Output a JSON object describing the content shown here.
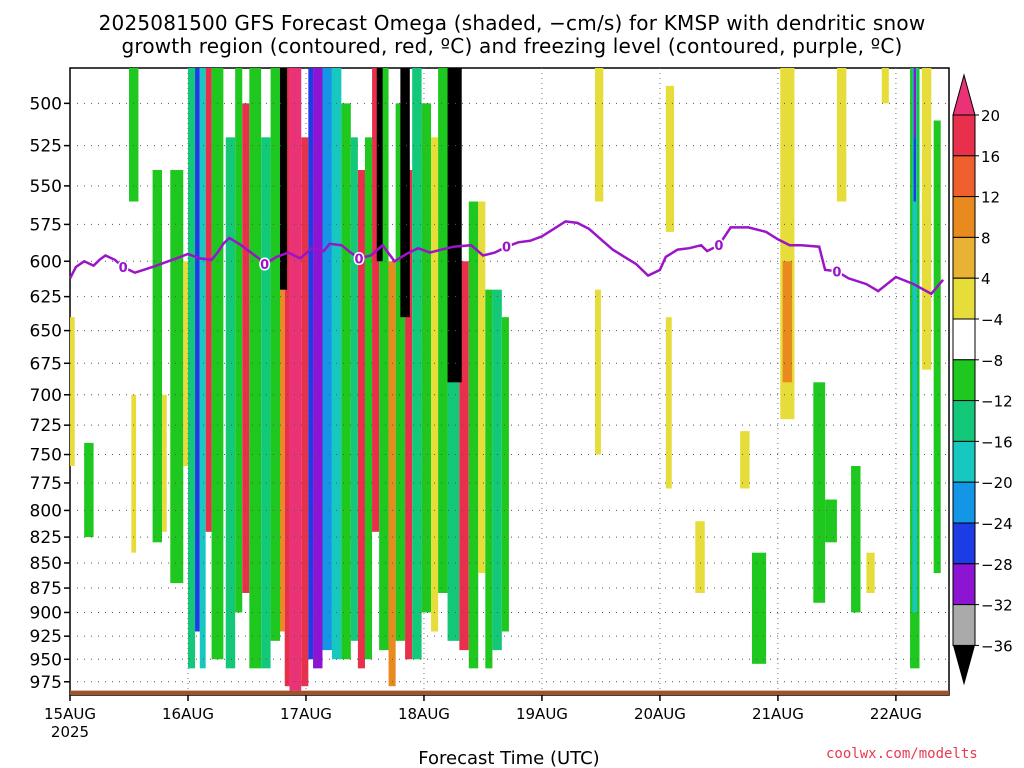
{
  "title_line1": "2025081500 GFS Forecast Omega (shaded, −cm/s) for KMSP with dendritic snow",
  "title_line2": "growth region (contoured, red, ºC) and freezing level (contoured, purple, ºC)",
  "xlabel": "Forecast Time (UTC)",
  "credit": "coolwx.com/modelts",
  "chart_data": {
    "type": "heatmap",
    "title": "2025081500 GFS Forecast Omega (shaded, −cm/s) for KMSP with dendritic snow growth region (contoured, red, ºC) and freezing level (contoured, purple, ºC)",
    "xlabel": "Forecast Time (UTC)",
    "ylabel": "",
    "x_ticks": [
      "15AUG",
      "16AUG",
      "17AUG",
      "18AUG",
      "19AUG",
      "20AUG",
      "21AUG",
      "22AUG"
    ],
    "x_tick_sub": "2025",
    "y_ticks": [
      500,
      525,
      550,
      575,
      600,
      625,
      650,
      675,
      700,
      725,
      750,
      775,
      800,
      825,
      850,
      875,
      900,
      925,
      950,
      975
    ],
    "y_scale": "log",
    "ylim": [
      480,
      990
    ],
    "xlim_days": [
      0,
      7.45
    ],
    "grid": true,
    "colorbar": {
      "labels": [
        "20",
        "16",
        "12",
        "8",
        "4",
        "−4",
        "−8",
        "−12",
        "−16",
        "−20",
        "−24",
        "−28",
        "−32",
        "−36"
      ],
      "colors": [
        "#e8304d",
        "#f0602e",
        "#e88a1e",
        "#e8b234",
        "#e6dd3a",
        "#ffffff",
        "#1ec81e",
        "#14c87a",
        "#16c8c0",
        "#1496e6",
        "#1c3ce6",
        "#8c14d2",
        "#aaaaaa"
      ],
      "top_arrow_color": "#ea3276",
      "bottom_arrow_color": "#000000"
    },
    "freezing_level_label": "0",
    "freezing_level_hpa": [
      [
        0.0,
        612
      ],
      [
        0.05,
        604
      ],
      [
        0.12,
        600
      ],
      [
        0.2,
        603
      ],
      [
        0.25,
        599
      ],
      [
        0.3,
        596
      ],
      [
        0.38,
        599
      ],
      [
        0.45,
        604
      ],
      [
        0.55,
        608
      ],
      [
        0.7,
        604
      ],
      [
        0.8,
        601
      ],
      [
        0.9,
        598
      ],
      [
        1.0,
        595
      ],
      [
        1.1,
        598
      ],
      [
        1.2,
        599
      ],
      [
        1.25,
        594
      ],
      [
        1.3,
        588
      ],
      [
        1.35,
        584
      ],
      [
        1.45,
        589
      ],
      [
        1.5,
        592
      ],
      [
        1.6,
        598
      ],
      [
        1.65,
        602
      ],
      [
        1.75,
        597
      ],
      [
        1.85,
        594
      ],
      [
        1.95,
        598
      ],
      [
        2.05,
        591
      ],
      [
        2.15,
        593
      ],
      [
        2.2,
        588
      ],
      [
        2.3,
        589
      ],
      [
        2.38,
        594
      ],
      [
        2.45,
        598
      ],
      [
        2.55,
        596
      ],
      [
        2.65,
        589
      ],
      [
        2.75,
        600
      ],
      [
        2.85,
        595
      ],
      [
        2.95,
        591
      ],
      [
        3.05,
        594
      ],
      [
        3.15,
        592
      ],
      [
        3.25,
        590
      ],
      [
        3.4,
        589
      ],
      [
        3.5,
        596
      ],
      [
        3.6,
        594
      ],
      [
        3.7,
        590
      ],
      [
        3.8,
        587
      ],
      [
        3.9,
        586
      ],
      [
        4.0,
        583
      ],
      [
        4.1,
        578
      ],
      [
        4.2,
        573
      ],
      [
        4.3,
        574
      ],
      [
        4.4,
        578
      ],
      [
        4.5,
        585
      ],
      [
        4.6,
        592
      ],
      [
        4.7,
        597
      ],
      [
        4.8,
        602
      ],
      [
        4.9,
        610
      ],
      [
        5.0,
        606
      ],
      [
        5.05,
        597
      ],
      [
        5.15,
        592
      ],
      [
        5.25,
        591
      ],
      [
        5.35,
        589
      ],
      [
        5.4,
        593
      ],
      [
        5.5,
        589
      ],
      [
        5.6,
        577
      ],
      [
        5.75,
        577
      ],
      [
        5.9,
        580
      ],
      [
        6.0,
        585
      ],
      [
        6.1,
        589
      ],
      [
        6.2,
        589
      ],
      [
        6.35,
        590
      ],
      [
        6.4,
        606
      ],
      [
        6.5,
        607
      ],
      [
        6.6,
        612
      ],
      [
        6.75,
        616
      ],
      [
        6.85,
        621
      ],
      [
        7.0,
        611
      ],
      [
        7.15,
        616
      ],
      [
        7.3,
        623
      ],
      [
        7.4,
        613
      ]
    ],
    "omega_bands": [
      {
        "x0": 0.0,
        "x1": 0.04,
        "p0": 640,
        "p1": 760,
        "color": "#e6dd3a"
      },
      {
        "x0": 0.12,
        "x1": 0.2,
        "p0": 740,
        "p1": 825,
        "color": "#1ec81e"
      },
      {
        "x0": 0.5,
        "x1": 0.58,
        "p0": 480,
        "p1": 560,
        "color": "#1ec81e"
      },
      {
        "x0": 0.52,
        "x1": 0.56,
        "p0": 700,
        "p1": 840,
        "color": "#e6dd3a"
      },
      {
        "x0": 0.7,
        "x1": 0.78,
        "p0": 540,
        "p1": 830,
        "color": "#1ec81e"
      },
      {
        "x0": 0.78,
        "x1": 0.82,
        "p0": 700,
        "p1": 820,
        "color": "#e6dd3a"
      },
      {
        "x0": 0.85,
        "x1": 0.96,
        "p0": 540,
        "p1": 870,
        "color": "#1ec81e"
      },
      {
        "x0": 0.96,
        "x1": 1.0,
        "p0": 600,
        "p1": 760,
        "color": "#e6dd3a"
      },
      {
        "x0": 1.0,
        "x1": 1.06,
        "p0": 480,
        "p1": 960,
        "color": "#14c87a"
      },
      {
        "x0": 1.06,
        "x1": 1.1,
        "p0": 480,
        "p1": 920,
        "color": "#1c3ce6"
      },
      {
        "x0": 1.1,
        "x1": 1.15,
        "p0": 480,
        "p1": 960,
        "color": "#16c8c0"
      },
      {
        "x0": 1.15,
        "x1": 1.2,
        "p0": 480,
        "p1": 820,
        "color": "#e8304d"
      },
      {
        "x0": 1.2,
        "x1": 1.3,
        "p0": 480,
        "p1": 950,
        "color": "#1ec81e"
      },
      {
        "x0": 1.32,
        "x1": 1.4,
        "p0": 520,
        "p1": 960,
        "color": "#14c87a"
      },
      {
        "x0": 1.4,
        "x1": 1.46,
        "p0": 480,
        "p1": 900,
        "color": "#1ec81e"
      },
      {
        "x0": 1.46,
        "x1": 1.52,
        "p0": 500,
        "p1": 880,
        "color": "#e8304d"
      },
      {
        "x0": 1.52,
        "x1": 1.62,
        "p0": 480,
        "p1": 960,
        "color": "#1ec81e"
      },
      {
        "x0": 1.62,
        "x1": 1.7,
        "p0": 520,
        "p1": 960,
        "color": "#14c87a"
      },
      {
        "x0": 1.7,
        "x1": 1.78,
        "p0": 480,
        "p1": 930,
        "color": "#1ec81e"
      },
      {
        "x0": 1.78,
        "x1": 1.82,
        "p0": 600,
        "p1": 920,
        "color": "#e88a1e"
      },
      {
        "x0": 1.82,
        "x1": 1.86,
        "p0": 480,
        "p1": 980,
        "color": "#e8304d"
      },
      {
        "x0": 1.86,
        "x1": 1.96,
        "p0": 480,
        "p1": 985,
        "color": "#ea3276"
      },
      {
        "x0": 1.96,
        "x1": 2.02,
        "p0": 520,
        "p1": 980,
        "color": "#e8304d"
      },
      {
        "x0": 2.02,
        "x1": 2.06,
        "p0": 480,
        "p1": 950,
        "color": "#1c3ce6"
      },
      {
        "x0": 2.06,
        "x1": 2.14,
        "p0": 480,
        "p1": 960,
        "color": "#8c14d2"
      },
      {
        "x0": 2.14,
        "x1": 2.22,
        "p0": 480,
        "p1": 940,
        "color": "#1496e6"
      },
      {
        "x0": 2.22,
        "x1": 2.3,
        "p0": 480,
        "p1": 950,
        "color": "#16c8c0"
      },
      {
        "x0": 2.3,
        "x1": 2.38,
        "p0": 500,
        "p1": 950,
        "color": "#1ec81e"
      },
      {
        "x0": 2.38,
        "x1": 2.44,
        "p0": 520,
        "p1": 930,
        "color": "#14c87a"
      },
      {
        "x0": 2.44,
        "x1": 2.5,
        "p0": 540,
        "p1": 960,
        "color": "#e8304d"
      },
      {
        "x0": 2.5,
        "x1": 2.56,
        "p0": 520,
        "p1": 950,
        "color": "#1ec81e"
      },
      {
        "x0": 2.56,
        "x1": 2.62,
        "p0": 480,
        "p1": 820,
        "color": "#e8304d"
      },
      {
        "x0": 2.62,
        "x1": 2.7,
        "p0": 480,
        "p1": 940,
        "color": "#1ec81e"
      },
      {
        "x0": 2.7,
        "x1": 2.76,
        "p0": 600,
        "p1": 980,
        "color": "#e88a1e"
      },
      {
        "x0": 2.76,
        "x1": 2.84,
        "p0": 500,
        "p1": 930,
        "color": "#1ec81e"
      },
      {
        "x0": 2.84,
        "x1": 2.9,
        "p0": 540,
        "p1": 950,
        "color": "#e8304d"
      },
      {
        "x0": 2.9,
        "x1": 2.98,
        "p0": 480,
        "p1": 950,
        "color": "#14c87a"
      },
      {
        "x0": 2.98,
        "x1": 3.06,
        "p0": 500,
        "p1": 900,
        "color": "#1ec81e"
      },
      {
        "x0": 3.06,
        "x1": 3.12,
        "p0": 520,
        "p1": 920,
        "color": "#e6dd3a"
      },
      {
        "x0": 3.12,
        "x1": 3.2,
        "p0": 480,
        "p1": 880,
        "color": "#1ec81e"
      },
      {
        "x0": 3.2,
        "x1": 3.3,
        "p0": 480,
        "p1": 930,
        "color": "#14c87a"
      },
      {
        "x0": 3.3,
        "x1": 3.38,
        "p0": 600,
        "p1": 940,
        "color": "#e8304d"
      },
      {
        "x0": 3.38,
        "x1": 3.46,
        "p0": 560,
        "p1": 960,
        "color": "#1ec81e"
      },
      {
        "x0": 3.46,
        "x1": 3.52,
        "p0": 560,
        "p1": 860,
        "color": "#e6dd3a"
      },
      {
        "x0": 3.52,
        "x1": 3.58,
        "p0": 620,
        "p1": 960,
        "color": "#1ec81e"
      },
      {
        "x0": 3.58,
        "x1": 3.66,
        "p0": 620,
        "p1": 940,
        "color": "#14c87a"
      },
      {
        "x0": 3.66,
        "x1": 3.72,
        "p0": 640,
        "p1": 920,
        "color": "#1ec81e"
      },
      {
        "x0": 4.45,
        "x1": 4.52,
        "p0": 480,
        "p1": 560,
        "color": "#e6dd3a"
      },
      {
        "x0": 4.45,
        "x1": 4.5,
        "p0": 620,
        "p1": 750,
        "color": "#e6dd3a"
      },
      {
        "x0": 5.05,
        "x1": 5.12,
        "p0": 490,
        "p1": 580,
        "color": "#e6dd3a"
      },
      {
        "x0": 5.05,
        "x1": 5.1,
        "p0": 640,
        "p1": 780,
        "color": "#e6dd3a"
      },
      {
        "x0": 5.3,
        "x1": 5.38,
        "p0": 810,
        "p1": 880,
        "color": "#e6dd3a"
      },
      {
        "x0": 5.68,
        "x1": 5.76,
        "p0": 730,
        "p1": 780,
        "color": "#e6dd3a"
      },
      {
        "x0": 5.78,
        "x1": 5.9,
        "p0": 840,
        "p1": 955,
        "color": "#1ec81e"
      },
      {
        "x0": 6.02,
        "x1": 6.14,
        "p0": 480,
        "p1": 720,
        "color": "#e6dd3a"
      },
      {
        "x0": 6.04,
        "x1": 6.12,
        "p0": 600,
        "p1": 690,
        "color": "#e88a1e"
      },
      {
        "x0": 6.3,
        "x1": 6.4,
        "p0": 690,
        "p1": 890,
        "color": "#1ec81e"
      },
      {
        "x0": 6.4,
        "x1": 6.5,
        "p0": 790,
        "p1": 830,
        "color": "#1ec81e"
      },
      {
        "x0": 6.5,
        "x1": 6.58,
        "p0": 480,
        "p1": 560,
        "color": "#e6dd3a"
      },
      {
        "x0": 6.62,
        "x1": 6.7,
        "p0": 760,
        "p1": 900,
        "color": "#1ec81e"
      },
      {
        "x0": 6.75,
        "x1": 6.82,
        "p0": 840,
        "p1": 880,
        "color": "#e6dd3a"
      },
      {
        "x0": 6.88,
        "x1": 6.94,
        "p0": 480,
        "p1": 500,
        "color": "#e6dd3a"
      },
      {
        "x0": 7.12,
        "x1": 7.2,
        "p0": 480,
        "p1": 960,
        "color": "#1ec81e"
      },
      {
        "x0": 7.14,
        "x1": 7.18,
        "p0": 480,
        "p1": 900,
        "color": "#16c8c0"
      },
      {
        "x0": 7.15,
        "x1": 7.17,
        "p0": 520,
        "p1": 560,
        "color": "#1c3ce6"
      },
      {
        "x0": 7.15,
        "x1": 7.17,
        "p0": 480,
        "p1": 520,
        "color": "#8c14d2"
      },
      {
        "x0": 7.22,
        "x1": 7.3,
        "p0": 480,
        "p1": 680,
        "color": "#e6dd3a"
      },
      {
        "x0": 7.32,
        "x1": 7.38,
        "p0": 510,
        "p1": 860,
        "color": "#1ec81e"
      }
    ],
    "strong_lift_cores": [
      {
        "x0": 1.78,
        "x1": 1.84,
        "p0": 480,
        "p1": 620,
        "color": "#000000"
      },
      {
        "x0": 2.6,
        "x1": 2.65,
        "p0": 480,
        "p1": 600,
        "color": "#000000"
      },
      {
        "x0": 2.8,
        "x1": 2.88,
        "p0": 480,
        "p1": 640,
        "color": "#000000"
      },
      {
        "x0": 3.2,
        "x1": 3.32,
        "p0": 480,
        "p1": 690,
        "color": "#000000"
      }
    ],
    "terrain_surface_hpa": 985
  }
}
